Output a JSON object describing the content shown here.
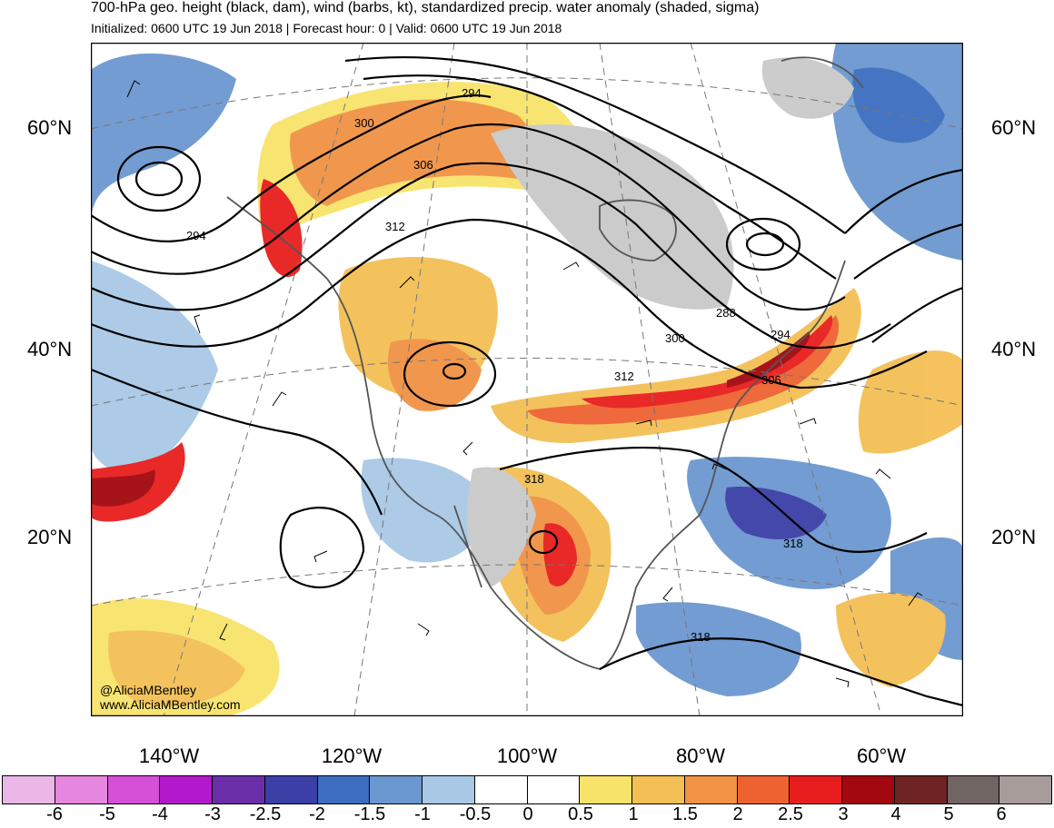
{
  "title": "700-hPa geo. height (black, dam), wind (barbs, kt), standardized precip. water anomaly (shaded, sigma)",
  "subtitle": "Initialized: 0600 UTC 19 Jun 2018 | Forecast hour: 0 | Valid: 0600 UTC 19 Jun 2018",
  "lat_labels": [
    "60°N",
    "40°N",
    "20°N"
  ],
  "lon_labels": [
    "140°W",
    "120°W",
    "100°W",
    "80°W",
    "60°W"
  ],
  "contour_labels": [
    "294",
    "300",
    "306",
    "312",
    "294",
    "288",
    "300",
    "294",
    "306",
    "312",
    "318",
    "318",
    "318"
  ],
  "credit": [
    "@AliciaMBentley",
    "www.AliciaMBentley.com"
  ],
  "colorbar": {
    "ticks": [
      "-6",
      "-5",
      "-4",
      "-3",
      "-2.5",
      "-2",
      "-1.5",
      "-1",
      "-0.5",
      "0",
      "0.5",
      "1",
      "1.5",
      "2",
      "2.5",
      "3",
      "4",
      "5",
      "6"
    ],
    "colors": [
      "#ebb7e6",
      "#e687e0",
      "#d54fd7",
      "#b418cc",
      "#6a2fa8",
      "#3b3fa6",
      "#3c6dbf",
      "#6b97d0",
      "#a9c8e6",
      "#ffffff",
      "#ffffff",
      "#f8e36a",
      "#f4bf55",
      "#f19244",
      "#ee6231",
      "#e81d1d",
      "#a3070f",
      "#6e2424",
      "#716563",
      "#a89c9a"
    ]
  }
}
